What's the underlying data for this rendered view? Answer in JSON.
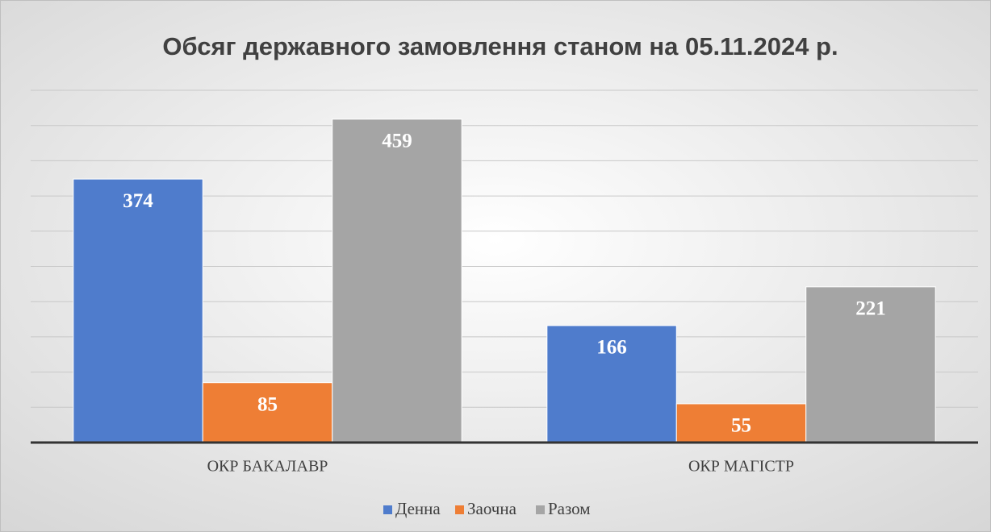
{
  "chart_data": {
    "type": "bar",
    "title": "Обсяг державного замовлення станом на 05.11.2024 р.",
    "categories": [
      "ОКР БАКАЛАВР",
      "ОКР МАГІСТР"
    ],
    "series": [
      {
        "name": "Денна",
        "color": "#4f7ccc",
        "values": [
          374,
          166
        ]
      },
      {
        "name": "Заочна",
        "color": "#ee7e35",
        "values": [
          85,
          55
        ]
      },
      {
        "name": "Разом",
        "color": "#a5a5a5",
        "values": [
          459,
          221
        ]
      }
    ],
    "ylim": [
      0,
      500
    ],
    "yticks": [
      0,
      50,
      100,
      150,
      200,
      250,
      300,
      350,
      400,
      450,
      500
    ],
    "grid": true,
    "legend": "bottom"
  }
}
